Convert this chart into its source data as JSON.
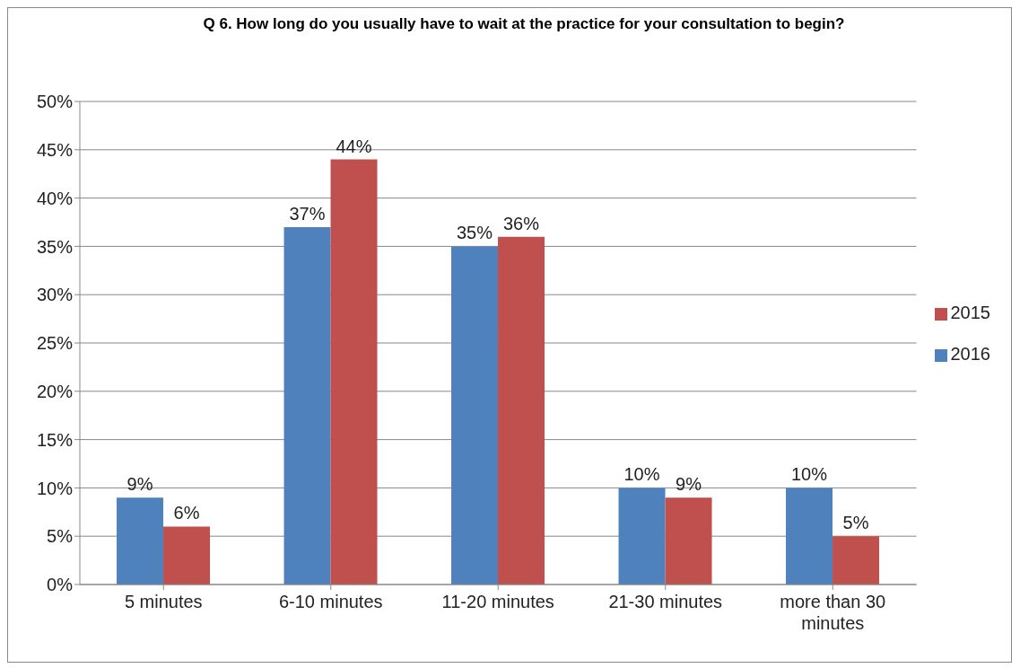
{
  "chart_data": {
    "type": "bar",
    "title": "Q 6. How long do you usually have to wait at the practice for your consultation to begin?",
    "categories": [
      "5 minutes",
      "6-10 minutes",
      "11-20 minutes",
      "21-30 minutes",
      "more than 30 minutes"
    ],
    "series": [
      {
        "name": "2016",
        "color": "#4f81bd",
        "values": [
          9,
          37,
          35,
          10,
          10
        ],
        "value_labels": [
          "9%",
          "37%",
          "35%",
          "10%",
          "10%"
        ]
      },
      {
        "name": "2015",
        "color": "#c0504d",
        "values": [
          6,
          44,
          36,
          9,
          5
        ],
        "value_labels": [
          "6%",
          "44%",
          "36%",
          "9%",
          "5%"
        ]
      }
    ],
    "ylim": [
      0,
      50
    ],
    "yticks": [
      {
        "value": 0,
        "label": "0%"
      },
      {
        "value": 5,
        "label": "5%"
      },
      {
        "value": 10,
        "label": "10%"
      },
      {
        "value": 15,
        "label": "15%"
      },
      {
        "value": 20,
        "label": "20%"
      },
      {
        "value": 25,
        "label": "25%"
      },
      {
        "value": 30,
        "label": "30%"
      },
      {
        "value": 35,
        "label": "35%"
      },
      {
        "value": 40,
        "label": "40%"
      },
      {
        "value": 45,
        "label": "45%"
      },
      {
        "value": 50,
        "label": "50%"
      }
    ],
    "grid": "y",
    "legend": "right"
  }
}
